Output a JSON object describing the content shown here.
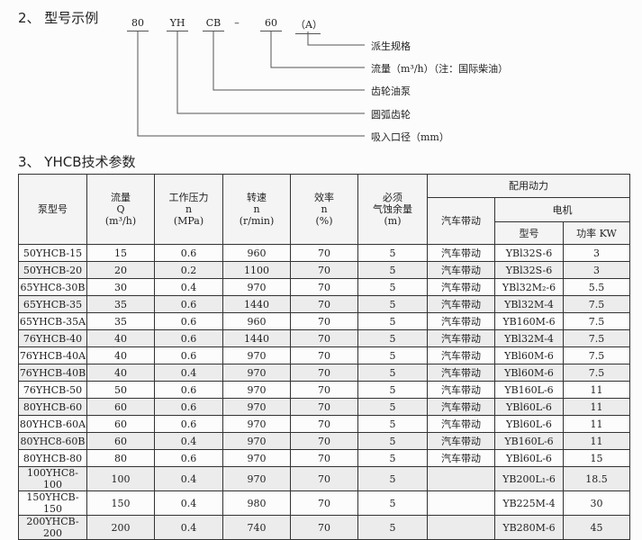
{
  "section2": {
    "title": "2、 型号示例",
    "codes": [
      "80",
      "YH",
      "CB",
      "–",
      "60",
      "（A）"
    ],
    "labels": [
      "派生规格",
      "流量（m³/h）（注：国际柴油）",
      "齿轮油泵",
      "圆弧齿轮",
      "吸入口径（mm）"
    ]
  },
  "section3": {
    "title": "3、 YHCB技术参数",
    "headers": {
      "model": "泵型号",
      "flow": "流量\nQ\n(m³/h)",
      "pressure": "工作压力\nn\n(MPa)",
      "speed": "转速\nn\n(r/min)",
      "efficiency": "效率\nn\n(%)",
      "npsh": "必须\n气蚀余量\n(m)",
      "power_group": "配用动力",
      "truck": "汽车带动",
      "motor_group": "电机",
      "motor_model": "型号",
      "motor_power": "功率 KW"
    },
    "rows": [
      {
        "model": "50YHCB-15",
        "flow": "15",
        "pressure": "0.6",
        "speed": "960",
        "eff": "70",
        "npsh": "5",
        "truck": "汽车带动",
        "motor": "YBl32S-6",
        "kw": "3"
      },
      {
        "model": "50YHCB-20",
        "flow": "20",
        "pressure": "0.2",
        "speed": "1100",
        "eff": "70",
        "npsh": "5",
        "truck": "汽车带动",
        "motor": "YBl32S-6",
        "kw": "3"
      },
      {
        "model": "65YHC8-30B",
        "flow": "30",
        "pressure": "0.4",
        "speed": "970",
        "eff": "70",
        "npsh": "5",
        "truck": "汽车带动",
        "motor": "YBl32M₂-6",
        "kw": "5.5"
      },
      {
        "model": "65YHCB-35",
        "flow": "35",
        "pressure": "0.6",
        "speed": "1440",
        "eff": "70",
        "npsh": "5",
        "truck": "汽车带动",
        "motor": "YBl32M-4",
        "kw": "7.5"
      },
      {
        "model": "65YHCB-35A",
        "flow": "35",
        "pressure": "0.6",
        "speed": "960",
        "eff": "70",
        "npsh": "5",
        "truck": "汽车带动",
        "motor": "YB160M-6",
        "kw": "7.5"
      },
      {
        "model": "76YHCB-40",
        "flow": "40",
        "pressure": "0.6",
        "speed": "1440",
        "eff": "70",
        "npsh": "5",
        "truck": "汽车带动",
        "motor": "YBl32M-4",
        "kw": "7.5"
      },
      {
        "model": "76YHCB-40A",
        "flow": "40",
        "pressure": "0.6",
        "speed": "970",
        "eff": "70",
        "npsh": "5",
        "truck": "汽车带动",
        "motor": "YBl60M-6",
        "kw": "7.5"
      },
      {
        "model": "76YHCB-40B",
        "flow": "40",
        "pressure": "0.4",
        "speed": "970",
        "eff": "70",
        "npsh": "5",
        "truck": "汽车带动",
        "motor": "YBl60M-6",
        "kw": "7.5"
      },
      {
        "model": "76YHCB-50",
        "flow": "50",
        "pressure": "0.6",
        "speed": "970",
        "eff": "70",
        "npsh": "5",
        "truck": "汽车带动",
        "motor": "YB160L-6",
        "kw": "11"
      },
      {
        "model": "80YHCB-60",
        "flow": "60",
        "pressure": "0.6",
        "speed": "970",
        "eff": "70",
        "npsh": "5",
        "truck": "汽车带动",
        "motor": "YBl60L-6",
        "kw": "11"
      },
      {
        "model": "80YHCB-60A",
        "flow": "60",
        "pressure": "0.6",
        "speed": "970",
        "eff": "70",
        "npsh": "5",
        "truck": "汽车带动",
        "motor": "YBl60L-6",
        "kw": "11"
      },
      {
        "model": "80YHC8-60B",
        "flow": "60",
        "pressure": "0.4",
        "speed": "970",
        "eff": "70",
        "npsh": "5",
        "truck": "汽车带动",
        "motor": "YB160L-6",
        "kw": "11"
      },
      {
        "model": "80YHCB-80",
        "flow": "80",
        "pressure": "0.6",
        "speed": "970",
        "eff": "70",
        "npsh": "5",
        "truck": "汽车带动",
        "motor": "YBl60L-6",
        "kw": "15"
      },
      {
        "model": "100YHC8-100",
        "flow": "100",
        "pressure": "0.4",
        "speed": "970",
        "eff": "70",
        "npsh": "5",
        "truck": "",
        "motor": "YB200L₁-6",
        "kw": "18.5"
      },
      {
        "model": "150YHCB-150",
        "flow": "150",
        "pressure": "0.4",
        "speed": "980",
        "eff": "70",
        "npsh": "5",
        "truck": "",
        "motor": "YB225M-4",
        "kw": "30"
      },
      {
        "model": "200YHCB-200",
        "flow": "200",
        "pressure": "0.4",
        "speed": "740",
        "eff": "70",
        "npsh": "5",
        "truck": "",
        "motor": "YB280M-6",
        "kw": "45"
      }
    ]
  }
}
